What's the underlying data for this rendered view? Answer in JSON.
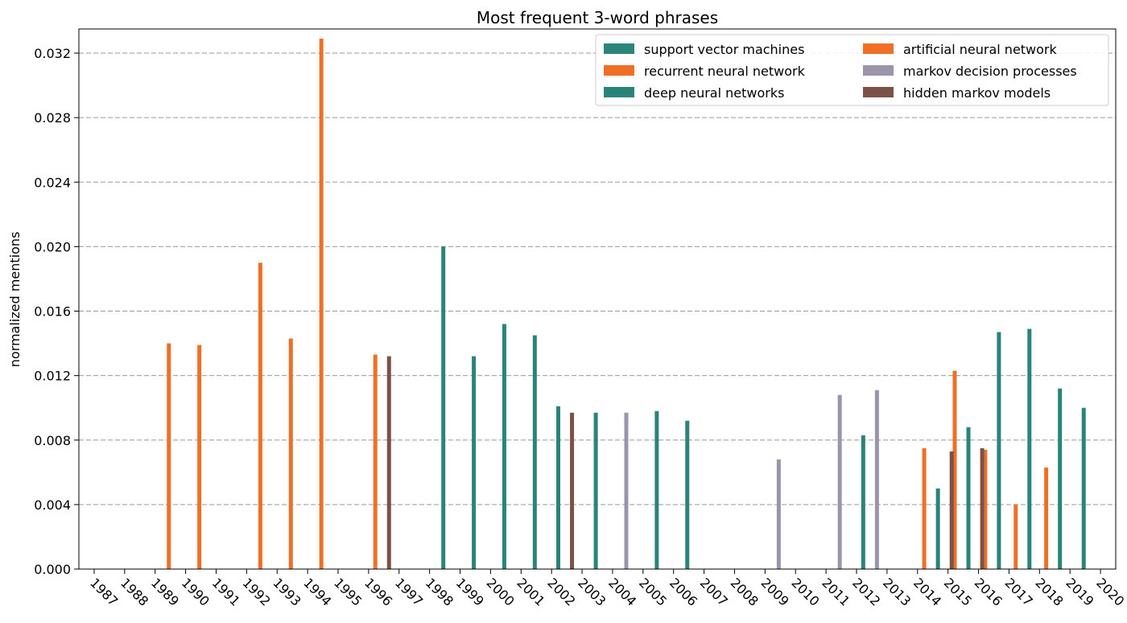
{
  "chart_data": {
    "type": "bar",
    "title": "Most frequent 3-word phrases",
    "xlabel": "",
    "ylabel": "normalized mentions",
    "ylim": [
      0,
      0.0335
    ],
    "yticks": [
      "0.000",
      "0.004",
      "0.008",
      "0.012",
      "0.016",
      "0.020",
      "0.024",
      "0.028",
      "0.032"
    ],
    "grid": "horizontal dashed",
    "legend_placement": "top-right",
    "categories": [
      "1987",
      "1988",
      "1989",
      "1990",
      "1991",
      "1992",
      "1993",
      "1994",
      "1995",
      "1996",
      "1997",
      "1998",
      "1999",
      "2000",
      "2001",
      "2002",
      "2003",
      "2004",
      "2005",
      "2006",
      "2007",
      "2008",
      "2009",
      "2010",
      "2011",
      "2012",
      "2013",
      "2014",
      "2015",
      "2016",
      "2017",
      "2018",
      "2019",
      "2020"
    ],
    "series": [
      {
        "name": "support vector machines",
        "color": "#2a8479",
        "values": [
          null,
          null,
          null,
          null,
          null,
          null,
          null,
          null,
          null,
          null,
          null,
          null,
          0.02,
          0.0132,
          0.0152,
          0.0145,
          0.0101,
          0.0097,
          null,
          0.0098,
          0.0092,
          null,
          null,
          null,
          null,
          null,
          0.0083,
          null,
          null,
          null,
          null,
          null,
          null,
          null
        ]
      },
      {
        "name": "recurrent neural network",
        "color": "#ef6f26",
        "values": [
          null,
          null,
          null,
          null,
          null,
          null,
          null,
          null,
          null,
          null,
          null,
          null,
          null,
          null,
          null,
          null,
          null,
          null,
          null,
          null,
          null,
          null,
          null,
          null,
          null,
          null,
          null,
          null,
          0.0075,
          0.0123,
          0.0074,
          0.004,
          0.0063,
          null
        ]
      },
      {
        "name": "deep neural networks",
        "color": "#2a8479",
        "values": [
          null,
          null,
          null,
          null,
          null,
          null,
          null,
          null,
          null,
          null,
          null,
          null,
          null,
          null,
          null,
          null,
          null,
          null,
          null,
          null,
          null,
          null,
          null,
          null,
          null,
          null,
          null,
          null,
          0.005,
          0.0088,
          0.0147,
          0.0149,
          0.0112,
          0.01
        ]
      },
      {
        "name": "artificial neural network",
        "color": "#ef6f26",
        "values": [
          null,
          null,
          null,
          0.014,
          0.0139,
          null,
          0.019,
          0.0143,
          0.0329,
          null,
          0.0133,
          null,
          null,
          null,
          null,
          null,
          null,
          null,
          null,
          null,
          null,
          null,
          null,
          null,
          null,
          null,
          null,
          null,
          null,
          null,
          null,
          null,
          null,
          null
        ]
      },
      {
        "name": "markov decision processes",
        "color": "#9b94ab",
        "values": [
          null,
          null,
          null,
          null,
          null,
          null,
          null,
          null,
          null,
          null,
          null,
          null,
          null,
          null,
          null,
          null,
          null,
          null,
          0.0097,
          null,
          null,
          null,
          null,
          0.0068,
          null,
          0.0108,
          0.0111,
          null,
          null,
          null,
          null,
          null,
          null,
          null
        ]
      },
      {
        "name": "hidden markov models",
        "color": "#7b5245",
        "values": [
          null,
          null,
          null,
          null,
          null,
          null,
          null,
          null,
          null,
          null,
          0.0132,
          null,
          null,
          null,
          null,
          null,
          0.0097,
          null,
          null,
          null,
          null,
          null,
          null,
          null,
          null,
          null,
          null,
          null,
          0.0073,
          0.0075,
          null,
          null,
          null,
          null
        ]
      }
    ]
  }
}
